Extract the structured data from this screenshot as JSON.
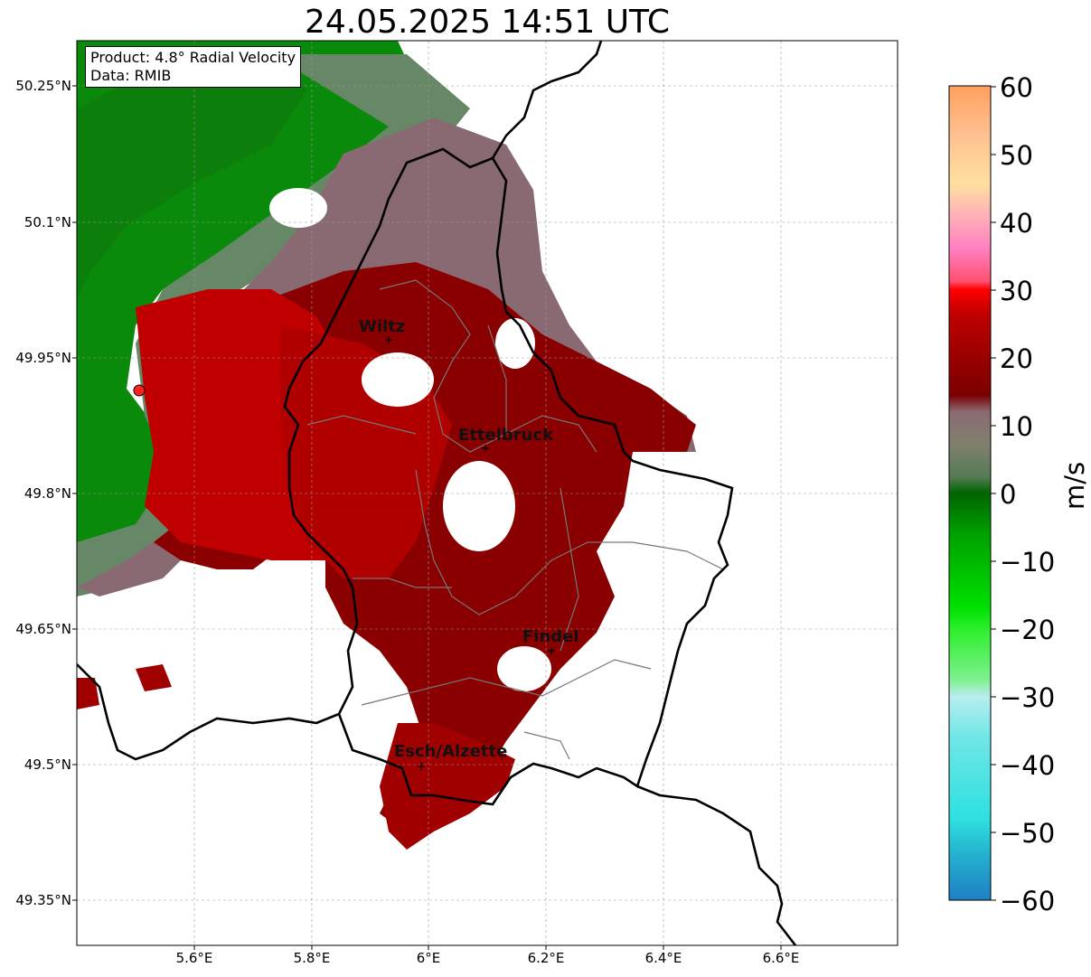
{
  "title": "24.05.2025 14:51 UTC",
  "info": {
    "product": "Product: 4.8° Radial Velocity",
    "data": "Data: RMIB"
  },
  "lat_labels": [
    "50.25°N",
    "50.1°N",
    "49.95°N",
    "49.8°N",
    "49.65°N",
    "49.5°N",
    "49.35°N"
  ],
  "lon_labels": [
    "5.6°E",
    "5.8°E",
    "6°E",
    "6.2°E",
    "6.4°E",
    "6.6°E"
  ],
  "cities": [
    {
      "name": "Wiltz"
    },
    {
      "name": "Ettelbruck"
    },
    {
      "name": "Findel"
    },
    {
      "name": "Esch/Alzette"
    }
  ],
  "colorbar": {
    "label": "m/s",
    "ticks": [
      "60",
      "50",
      "40",
      "30",
      "20",
      "10",
      "0",
      "−10",
      "−20",
      "−30",
      "−40",
      "−50",
      "−60"
    ],
    "range": [
      -60,
      60
    ],
    "colors": {
      "neg_far": "#1f7fc4",
      "cyan": "#2ee0e0",
      "light_cyan": "#b8eef0",
      "light_green": "#80f090",
      "green": "#00cc00",
      "dark_green": "#006400",
      "gray_green": "#668866",
      "gray_pink": "#8a6a72",
      "dark_red": "#7a0000",
      "red": "#cc0000",
      "bright_red": "#ff0000",
      "pink": "#ff80c0",
      "peach": "#ffc090",
      "orange": "#ffa060"
    }
  }
}
